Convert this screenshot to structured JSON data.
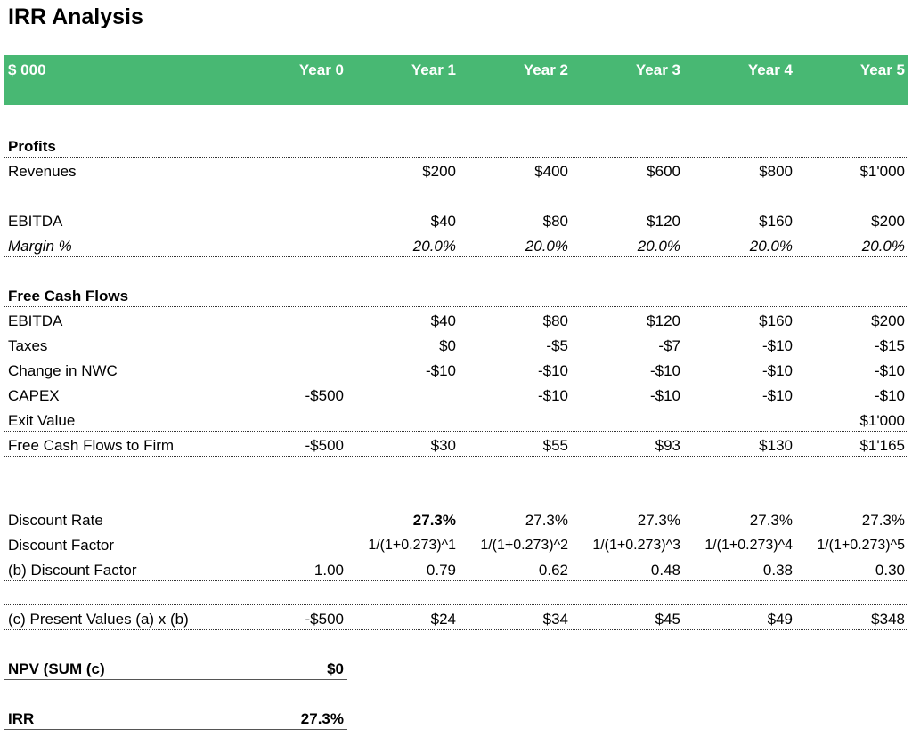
{
  "title": "IRR Analysis",
  "header": {
    "unit": "$ 000",
    "years": [
      "Year 0",
      "Year 1",
      "Year 2",
      "Year 3",
      "Year 4",
      "Year 5"
    ]
  },
  "profits": {
    "heading": "Profits",
    "revenues": {
      "label": "Revenues",
      "values": [
        "",
        "$200",
        "$400",
        "$600",
        "$800",
        "$1'000"
      ]
    },
    "ebitda": {
      "label": "EBITDA",
      "values": [
        "",
        "$40",
        "$80",
        "$120",
        "$160",
        "$200"
      ]
    },
    "margin": {
      "label": "Margin %",
      "values": [
        "",
        "20.0%",
        "20.0%",
        "20.0%",
        "20.0%",
        "20.0%"
      ]
    }
  },
  "fcf": {
    "heading": "Free Cash Flows",
    "ebitda": {
      "label": "EBITDA",
      "values": [
        "",
        "$40",
        "$80",
        "$120",
        "$160",
        "$200"
      ]
    },
    "taxes": {
      "label": "Taxes",
      "values": [
        "",
        "$0",
        "-$5",
        "-$7",
        "-$10",
        "-$15"
      ]
    },
    "nwc": {
      "label": "Change in NWC",
      "values": [
        "",
        "-$10",
        "-$10",
        "-$10",
        "-$10",
        "-$10"
      ]
    },
    "capex": {
      "label": "CAPEX",
      "values": [
        "-$500",
        "",
        "-$10",
        "-$10",
        "-$10",
        "-$10"
      ]
    },
    "exit": {
      "label": "Exit Value",
      "values": [
        "",
        "",
        "",
        "",
        "",
        "$1'000"
      ]
    },
    "total": {
      "label": "Free Cash Flows to Firm",
      "values": [
        "-$500",
        "$30",
        "$55",
        "$93",
        "$130",
        "$1'165"
      ]
    }
  },
  "discount": {
    "rate": {
      "label": "Discount Rate",
      "values": [
        "",
        "27.3%",
        "27.3%",
        "27.3%",
        "27.3%",
        "27.3%"
      ]
    },
    "factor_formula": {
      "label": "Discount Factor",
      "values": [
        "",
        "1/(1+0.273)^1",
        "1/(1+0.273)^2",
        "1/(1+0.273)^3",
        "1/(1+0.273)^4",
        "1/(1+0.273)^5"
      ]
    },
    "factor": {
      "label": "(b) Discount Factor",
      "values": [
        "1.00",
        "0.79",
        "0.62",
        "0.48",
        "0.38",
        "0.30"
      ]
    }
  },
  "pv": {
    "label": "(c) Present Values (a) x (b)",
    "values": [
      "-$500",
      "$24",
      "$34",
      "$45",
      "$49",
      "$348"
    ]
  },
  "npv": {
    "label": "NPV (SUM (c)",
    "value": "$0"
  },
  "irr": {
    "label": "IRR",
    "value": "27.3%"
  }
}
